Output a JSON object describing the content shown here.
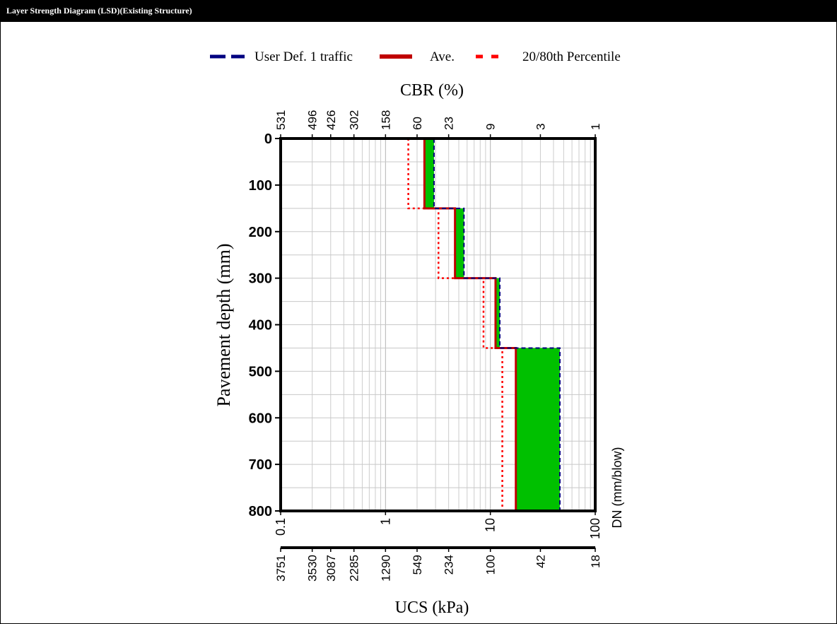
{
  "window": {
    "title": "Layer Strength Diagram (LSD)(Existing Structure)"
  },
  "chart_data": {
    "type": "line",
    "legend": {
      "placement": "top",
      "entries": [
        {
          "label": "User Def. 1 traffic",
          "color": "#000080",
          "style": "dashed"
        },
        {
          "label": "Ave.",
          "color": "#c00000",
          "style": "solid"
        },
        {
          "label": "20/80th Percentile",
          "color": "#ff0000",
          "style": "dotted"
        }
      ]
    },
    "top_axis": {
      "label": "CBR (%)",
      "ticks": [
        {
          "dn": 0.1,
          "label": "531"
        },
        {
          "dn": 0.2,
          "label": "496"
        },
        {
          "dn": 0.3,
          "label": "426"
        },
        {
          "dn": 0.5,
          "label": "302"
        },
        {
          "dn": 1,
          "label": "158"
        },
        {
          "dn": 2,
          "label": "60"
        },
        {
          "dn": 4,
          "label": "23"
        },
        {
          "dn": 10,
          "label": "9"
        },
        {
          "dn": 30,
          "label": "3"
        },
        {
          "dn": 100,
          "label": "1"
        }
      ]
    },
    "y_axis": {
      "label": "Pavement depth (mm)",
      "range": [
        0,
        800
      ],
      "ticks": [
        {
          "value": 0,
          "label": "0"
        },
        {
          "value": 100,
          "label": "100"
        },
        {
          "value": 200,
          "label": "200"
        },
        {
          "value": 300,
          "label": "300"
        },
        {
          "value": 400,
          "label": "400"
        },
        {
          "value": 500,
          "label": "500"
        },
        {
          "value": 600,
          "label": "600"
        },
        {
          "value": 700,
          "label": "700"
        },
        {
          "value": 800,
          "label": "800"
        }
      ],
      "minor_step": 50
    },
    "x_axis": {
      "label": "DN (mm/blow)",
      "scale": "log",
      "range": [
        0.1,
        100
      ],
      "ticks": [
        {
          "value": 0.1,
          "label": "0.1"
        },
        {
          "value": 1,
          "label": "1"
        },
        {
          "value": 10,
          "label": "10"
        },
        {
          "value": 100,
          "label": "100"
        }
      ]
    },
    "bottom_axis": {
      "label": "UCS (kPa)",
      "ticks": [
        {
          "dn": 0.1,
          "label": "3751"
        },
        {
          "dn": 0.2,
          "label": "3530"
        },
        {
          "dn": 0.3,
          "label": "3087"
        },
        {
          "dn": 0.5,
          "label": "2285"
        },
        {
          "dn": 1,
          "label": "1290"
        },
        {
          "dn": 2,
          "label": "549"
        },
        {
          "dn": 4,
          "label": "234"
        },
        {
          "dn": 10,
          "label": "100"
        },
        {
          "dn": 30,
          "label": "42"
        },
        {
          "dn": 100,
          "label": "18"
        }
      ]
    },
    "grid": true,
    "layers": [
      {
        "top": 0,
        "bottom": 150,
        "required_dn": 2.9,
        "average_dn": 2.35,
        "percentile_dn": 1.65,
        "fill": "#00c000"
      },
      {
        "top": 150,
        "bottom": 300,
        "required_dn": 5.6,
        "average_dn": 4.6,
        "percentile_dn": 3.2,
        "fill": "#00c000"
      },
      {
        "top": 300,
        "bottom": 450,
        "required_dn": 12.3,
        "average_dn": 11.2,
        "percentile_dn": 8.6,
        "fill": "#00c000"
      },
      {
        "top": 450,
        "bottom": 800,
        "required_dn": 46,
        "average_dn": 17.5,
        "percentile_dn": 13,
        "fill": "#00c000"
      }
    ]
  }
}
